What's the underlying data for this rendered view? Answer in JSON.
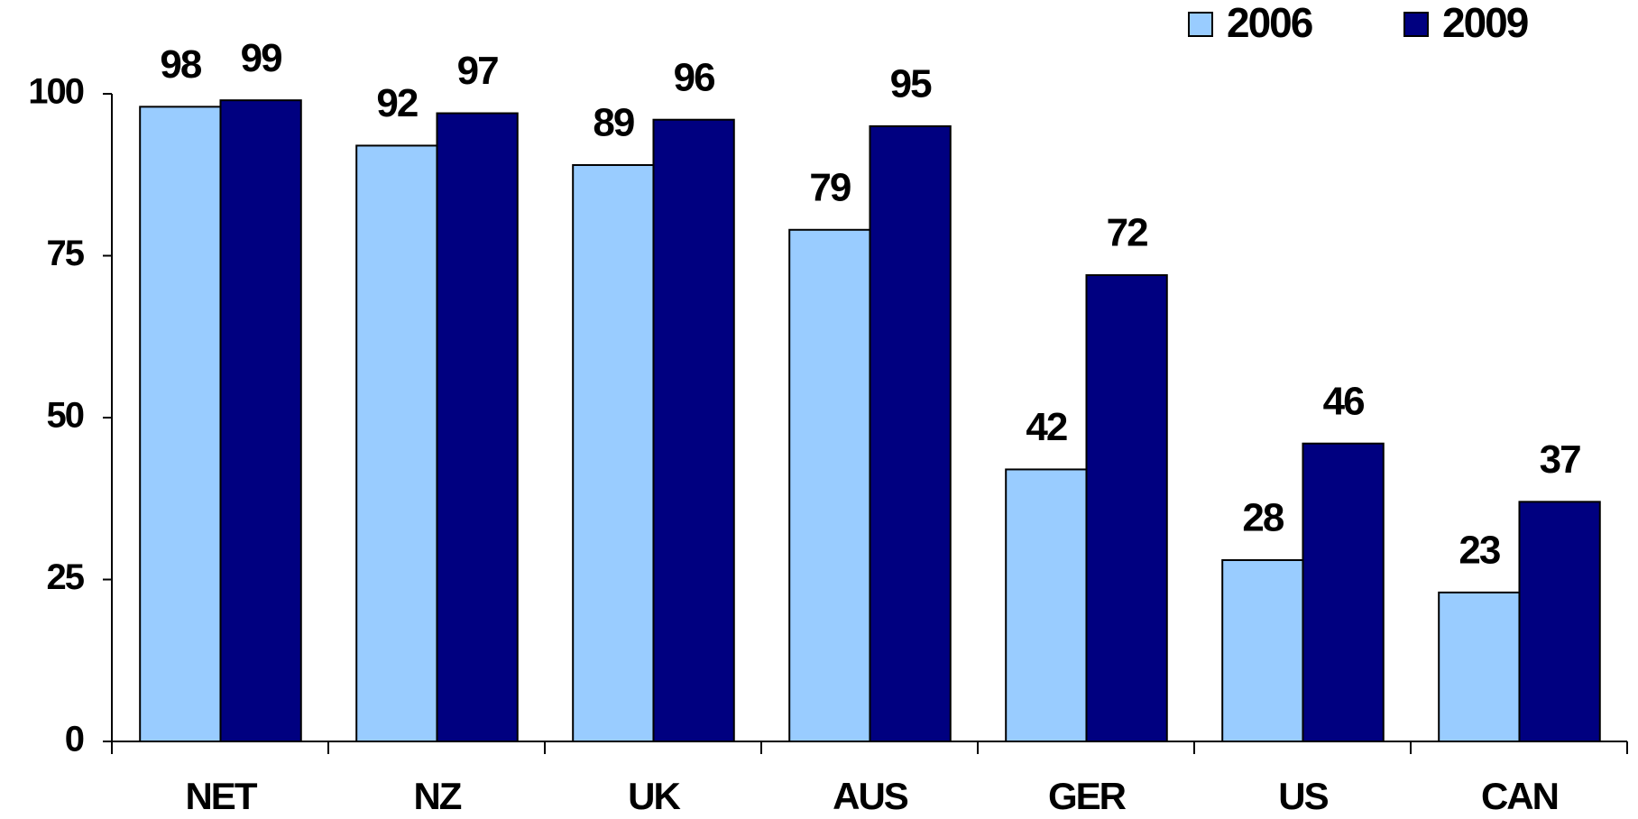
{
  "chart_data": {
    "type": "bar",
    "categories": [
      "NET",
      "NZ",
      "UK",
      "AUS",
      "GER",
      "US",
      "CAN"
    ],
    "series": [
      {
        "name": "2006",
        "color": "#99ccff",
        "values": [
          98,
          92,
          89,
          79,
          42,
          28,
          23
        ]
      },
      {
        "name": "2009",
        "color": "#000080",
        "values": [
          99,
          97,
          96,
          95,
          72,
          46,
          37
        ]
      }
    ],
    "ylim": [
      0,
      100
    ],
    "yticks": [
      0,
      25,
      50,
      75,
      100
    ],
    "grid": false,
    "legend": "top-right"
  }
}
